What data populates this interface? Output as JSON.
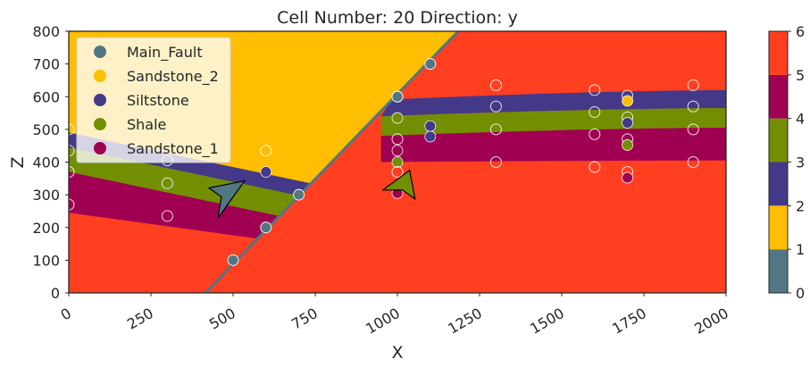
{
  "chart_data": {
    "type": "geological-section",
    "title": "Cell Number: 20 Direction: y",
    "xlabel": "X",
    "ylabel": "Z",
    "xlim": [
      0,
      2000
    ],
    "ylim": [
      0,
      800
    ],
    "x_ticks": [
      "0",
      "250",
      "500",
      "750",
      "1000",
      "1250",
      "1500",
      "1750",
      "2000"
    ],
    "y_ticks": [
      "0",
      "100",
      "200",
      "300",
      "400",
      "500",
      "600",
      "700",
      "800"
    ],
    "legend": {
      "placement": "top-left",
      "entries": [
        {
          "name": "Main_Fault",
          "color": "#527682"
        },
        {
          "name": "Sandstone_2",
          "color": "#ffbe00"
        },
        {
          "name": "Siltstone",
          "color": "#443988"
        },
        {
          "name": "Shale",
          "color": "#728f02"
        },
        {
          "name": "Sandstone_1",
          "color": "#9f0052"
        }
      ]
    },
    "colorbar": {
      "ticks": [
        "0",
        "1",
        "2",
        "3",
        "4",
        "5",
        "6"
      ],
      "segments": [
        {
          "from": 0,
          "to": 1,
          "color": "#527682"
        },
        {
          "from": 1,
          "to": 2,
          "color": "#ffbe00"
        },
        {
          "from": 2,
          "to": 3,
          "color": "#443988"
        },
        {
          "from": 3,
          "to": 4,
          "color": "#728f02"
        },
        {
          "from": 4,
          "to": 5,
          "color": "#9f0052"
        },
        {
          "from": 5,
          "to": 6,
          "color": "#ff3f20"
        }
      ]
    },
    "basement_color": "#ff3f20",
    "layers": {
      "left_block": {
        "x": [
          0,
          690
        ],
        "sandstone_2_bottom": [
          490,
          340
        ],
        "siltstone_bottom": [
          445,
          295
        ],
        "shale_bottom": [
          370,
          220
        ],
        "sandstone_1_bottom": [
          245,
          150
        ]
      },
      "right_block": {
        "x": [
          950,
          2000
        ],
        "sandstone_2_bottom": [
          590,
          620
        ],
        "siltstone_bottom": [
          540,
          565
        ],
        "shale_bottom": [
          480,
          505
        ],
        "sandstone_1_bottom": [
          400,
          405
        ]
      }
    },
    "fault_line": {
      "x": [
        415,
        1185
      ],
      "y": [
        0,
        800
      ],
      "color": "#527682"
    },
    "fault_points": [
      {
        "x": 500,
        "y": 100
      },
      {
        "x": 600,
        "y": 200
      },
      {
        "x": 700,
        "y": 300
      },
      {
        "x": 1000,
        "y": 600
      },
      {
        "x": 1100,
        "y": 700
      }
    ],
    "surface_points": [
      {
        "x": 0,
        "y": 500,
        "layer": "Sandstone_2",
        "filled": false
      },
      {
        "x": 0,
        "y": 435,
        "layer": "Siltstone",
        "filled": false
      },
      {
        "x": 0,
        "y": 370,
        "layer": "Shale",
        "filled": false
      },
      {
        "x": 0,
        "y": 270,
        "layer": "Sandstone_1",
        "filled": false
      },
      {
        "x": 300,
        "y": 405,
        "layer": "Siltstone",
        "filled": false
      },
      {
        "x": 300,
        "y": 335,
        "layer": "Shale",
        "filled": false
      },
      {
        "x": 300,
        "y": 235,
        "layer": "Sandstone_1",
        "filled": false
      },
      {
        "x": 600,
        "y": 435,
        "layer": "Sandstone_2",
        "filled": false
      },
      {
        "x": 600,
        "y": 370,
        "layer": "Siltstone",
        "filled": true
      },
      {
        "x": 1000,
        "y": 600,
        "layer": "Sandstone_2",
        "filled": false
      },
      {
        "x": 1000,
        "y": 535,
        "layer": "Shale",
        "filled": true
      },
      {
        "x": 1000,
        "y": 470,
        "layer": "Shale",
        "filled": false
      },
      {
        "x": 1000,
        "y": 435,
        "layer": "Sandstone_1",
        "filled": true
      },
      {
        "x": 1000,
        "y": 400,
        "layer": "Shale",
        "filled": true
      },
      {
        "x": 1000,
        "y": 370,
        "layer": "Sandstone_1",
        "filled": false
      },
      {
        "x": 1000,
        "y": 305,
        "layer": "Sandstone_1",
        "filled": true
      },
      {
        "x": 1100,
        "y": 510,
        "layer": "Siltstone",
        "filled": true
      },
      {
        "x": 1100,
        "y": 478,
        "layer": "Siltstone",
        "filled": true
      },
      {
        "x": 1300,
        "y": 635,
        "layer": "Sandstone_2",
        "filled": false
      },
      {
        "x": 1300,
        "y": 570,
        "layer": "Siltstone",
        "filled": false
      },
      {
        "x": 1300,
        "y": 500,
        "layer": "Shale",
        "filled": false
      },
      {
        "x": 1300,
        "y": 400,
        "layer": "Sandstone_1",
        "filled": false
      },
      {
        "x": 1600,
        "y": 620,
        "layer": "Sandstone_2",
        "filled": false
      },
      {
        "x": 1600,
        "y": 553,
        "layer": "Siltstone",
        "filled": false
      },
      {
        "x": 1600,
        "y": 485,
        "layer": "Shale",
        "filled": false
      },
      {
        "x": 1600,
        "y": 385,
        "layer": "Sandstone_1",
        "filled": false
      },
      {
        "x": 1700,
        "y": 603,
        "layer": "Sandstone_2",
        "filled": false
      },
      {
        "x": 1700,
        "y": 587,
        "layer": "Sandstone_2",
        "filled": true
      },
      {
        "x": 1700,
        "y": 537,
        "layer": "Siltstone",
        "filled": false
      },
      {
        "x": 1700,
        "y": 520,
        "layer": "Siltstone",
        "filled": true
      },
      {
        "x": 1700,
        "y": 470,
        "layer": "Shale",
        "filled": false
      },
      {
        "x": 1700,
        "y": 452,
        "layer": "Shale",
        "filled": true
      },
      {
        "x": 1700,
        "y": 370,
        "layer": "Sandstone_1",
        "filled": false
      },
      {
        "x": 1700,
        "y": 352,
        "layer": "Sandstone_1",
        "filled": true
      },
      {
        "x": 1900,
        "y": 635,
        "layer": "Sandstone_2",
        "filled": false
      },
      {
        "x": 1900,
        "y": 570,
        "layer": "Siltstone",
        "filled": false
      },
      {
        "x": 1900,
        "y": 500,
        "layer": "Shale",
        "filled": false
      },
      {
        "x": 1900,
        "y": 400,
        "layer": "Sandstone_1",
        "filled": false
      }
    ],
    "orientations": [
      {
        "x": 470,
        "y": 310,
        "layer": "Main_Fault",
        "color": "#527682"
      },
      {
        "x": 1010,
        "y": 320,
        "layer": "Shale",
        "color": "#728f02"
      }
    ]
  }
}
